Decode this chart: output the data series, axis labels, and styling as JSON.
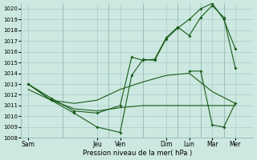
{
  "xlabel": "Pression niveau de la mer( hPa )",
  "background_color": "#cce8e0",
  "grid_color": "#aacccc",
  "line_color": "#1a5c1a",
  "ylim": [
    1008,
    1020.5
  ],
  "yticks": [
    1008,
    1009,
    1010,
    1011,
    1012,
    1013,
    1014,
    1015,
    1016,
    1017,
    1018,
    1019,
    1020
  ],
  "x_labels": [
    "Sam",
    "Jeu",
    "Ven",
    "Dim",
    "Lun",
    "Mar",
    "Mer"
  ],
  "x_positions": [
    0,
    3,
    4,
    6,
    7,
    8,
    9
  ],
  "xlim": [
    -0.3,
    9.8
  ],
  "vline_x": [
    1.5,
    3.5,
    5.0,
    6.5,
    7.5,
    8.5
  ],
  "s1_x": [
    0,
    1,
    2,
    3,
    4,
    5,
    6,
    7,
    8,
    9
  ],
  "s1_y": [
    1013.0,
    1011.5,
    1010.7,
    1010.5,
    1010.8,
    1011.0,
    1011.0,
    1011.0,
    1011.0,
    1011.0
  ],
  "s2_x": [
    0,
    1,
    2,
    3,
    4,
    5,
    6,
    7,
    8,
    9
  ],
  "s2_y": [
    1012.5,
    1011.5,
    1011.2,
    1011.5,
    1012.5,
    1013.2,
    1013.8,
    1014.0,
    1012.3,
    1011.2
  ],
  "s3_x": [
    0,
    1,
    2,
    3,
    4,
    4.5,
    5,
    5.5,
    6,
    6.5,
    7,
    7.5,
    8,
    8.5,
    9
  ],
  "s3_y": [
    1013.0,
    1011.5,
    1010.3,
    1009.0,
    1008.5,
    1013.8,
    1015.3,
    1015.2,
    1017.2,
    1018.2,
    1019.0,
    1020.0,
    1020.5,
    1019.0,
    1016.3
  ],
  "s4_x": [
    0,
    1,
    2,
    3,
    4,
    4.5,
    5,
    5.5,
    6,
    6.5,
    7,
    7.5,
    8,
    8.5,
    9
  ],
  "s4_y": [
    1013.0,
    1011.7,
    1010.5,
    1010.3,
    1011.0,
    1015.5,
    1015.2,
    1015.3,
    1017.3,
    1018.3,
    1017.5,
    1019.2,
    1020.3,
    1019.2,
    1014.5
  ],
  "s5_x": [
    7,
    7.5,
    8,
    8.5,
    9
  ],
  "s5_y": [
    1014.2,
    1014.2,
    1009.2,
    1009.0,
    1011.2
  ],
  "figsize": [
    3.2,
    2.0
  ],
  "dpi": 100
}
